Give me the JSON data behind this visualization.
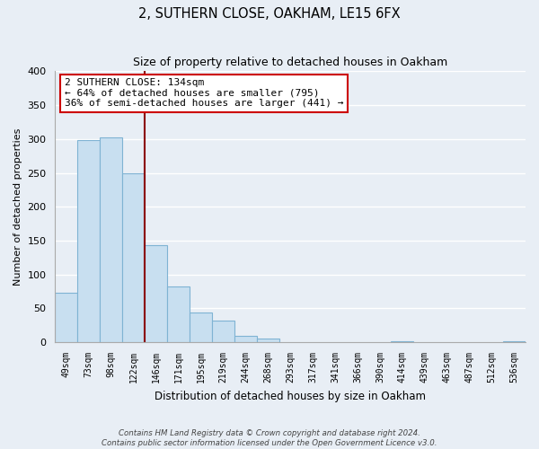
{
  "title": "2, SUTHERN CLOSE, OAKHAM, LE15 6FX",
  "subtitle": "Size of property relative to detached houses in Oakham",
  "xlabel": "Distribution of detached houses by size in Oakham",
  "ylabel": "Number of detached properties",
  "bar_labels": [
    "49sqm",
    "73sqm",
    "98sqm",
    "122sqm",
    "146sqm",
    "171sqm",
    "195sqm",
    "219sqm",
    "244sqm",
    "268sqm",
    "293sqm",
    "317sqm",
    "341sqm",
    "366sqm",
    "390sqm",
    "414sqm",
    "439sqm",
    "463sqm",
    "487sqm",
    "512sqm",
    "536sqm"
  ],
  "bar_values": [
    73,
    298,
    303,
    249,
    143,
    83,
    44,
    32,
    9,
    6,
    0,
    0,
    0,
    0,
    0,
    2,
    0,
    0,
    0,
    0,
    2
  ],
  "bar_color": "#c8dff0",
  "bar_edge_color": "#7fb3d3",
  "ylim": [
    0,
    400
  ],
  "yticks": [
    0,
    50,
    100,
    150,
    200,
    250,
    300,
    350,
    400
  ],
  "property_line_color": "#8b0000",
  "annotation_title": "2 SUTHERN CLOSE: 134sqm",
  "annotation_line1": "← 64% of detached houses are smaller (795)",
  "annotation_line2": "36% of semi-detached houses are larger (441) →",
  "footer_line1": "Contains HM Land Registry data © Crown copyright and database right 2024.",
  "footer_line2": "Contains public sector information licensed under the Open Government Licence v3.0.",
  "background_color": "#e8eef5",
  "plot_bg_color": "#e8eef5",
  "grid_color": "#ffffff"
}
